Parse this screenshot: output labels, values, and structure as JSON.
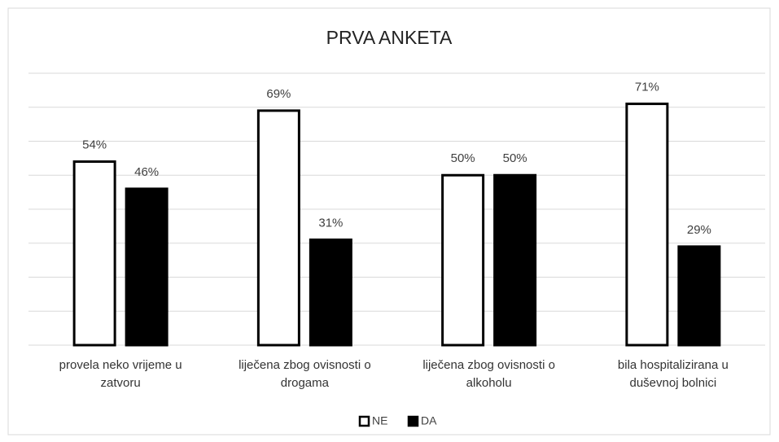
{
  "chart_data": {
    "type": "bar",
    "title": "PRVA ANKETA",
    "categories": [
      "provela neko vrijeme u zatvoru",
      "liječena zbog ovisnosti o drogama",
      "liječena zbog ovisnosti o alkoholu",
      "bila hospitalizirana u duševnoj bolnici"
    ],
    "series": [
      {
        "name": "NE",
        "color": "#ffffff",
        "values": [
          54,
          69,
          50,
          71
        ],
        "value_labels": [
          "54%",
          "69%",
          "50%",
          "71%"
        ]
      },
      {
        "name": "DA",
        "color": "#000000",
        "values": [
          46,
          31,
          50,
          29
        ],
        "value_labels": [
          "46%",
          "31%",
          "50%",
          "29%"
        ]
      }
    ],
    "ylim": [
      0,
      80
    ],
    "yticks": [
      0,
      10,
      20,
      30,
      40,
      50,
      60,
      70,
      80
    ],
    "grid": true,
    "legend": "bottom"
  }
}
